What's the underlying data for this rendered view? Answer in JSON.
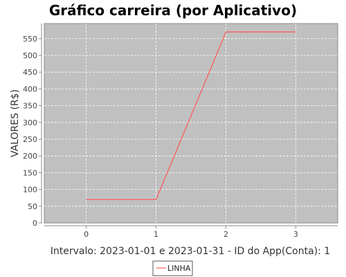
{
  "chart_data": {
    "type": "line",
    "title": "Gráfico carreira (por Aplicativo)",
    "xlabel": "Intervalo: 2023-01-01 e 2023-01-31 - ID do App(Conta): 1",
    "ylabel": "VALORES (R$)",
    "x": [
      0,
      1,
      2,
      3
    ],
    "x_ticks": [
      "0",
      "1",
      "2",
      "3"
    ],
    "y_ticks": [
      "0",
      "50",
      "100",
      "150",
      "200",
      "250",
      "300",
      "350",
      "400",
      "450",
      "500",
      "550"
    ],
    "xlim": [
      -0.6,
      3.6
    ],
    "ylim": [
      0,
      595
    ],
    "grid": true,
    "legend": "bottom-center",
    "series": [
      {
        "name": "LINHA",
        "values": [
          70,
          70,
          570,
          570
        ],
        "color": "#ff5555"
      }
    ],
    "colors": {
      "plot_background": "#c0c0c0",
      "grid": "#ffffff"
    }
  }
}
